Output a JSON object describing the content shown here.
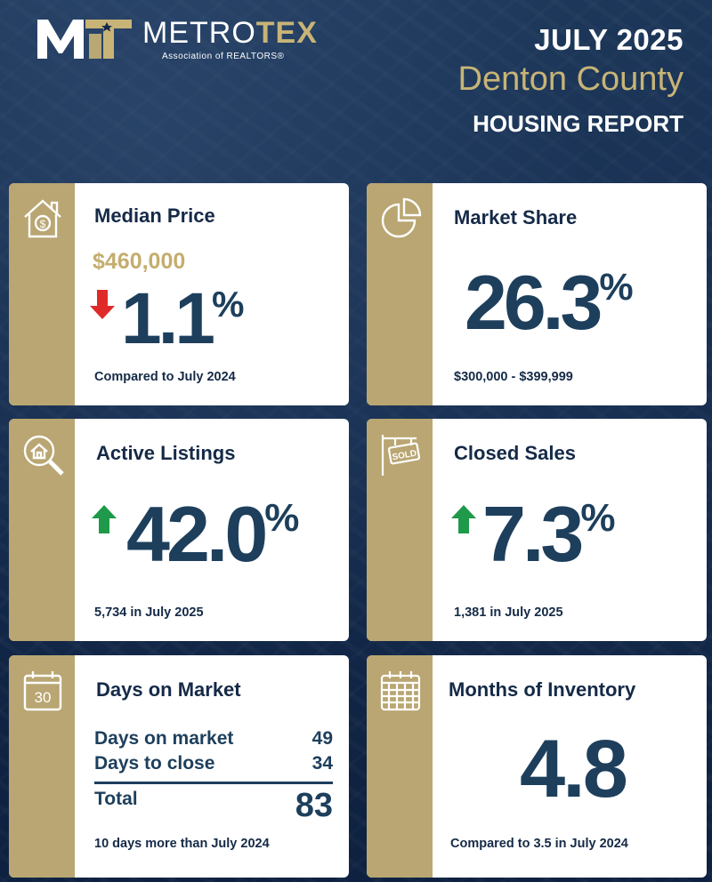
{
  "header": {
    "logo_metro": "METRO",
    "logo_tex": "TEX",
    "logo_sub": "Association of REALTORS®",
    "date": "JULY 2025",
    "county": "Denton County",
    "report": "HOUSING REPORT"
  },
  "colors": {
    "navy": "#152a47",
    "gold": "#b9a672",
    "up": "#1f9a4a",
    "down": "#e02a2a"
  },
  "cards": {
    "median_price": {
      "title": "Median Price",
      "price": "$460,000",
      "change": "1.1",
      "unit": "%",
      "direction": "down",
      "foot": "Compared to July 2024",
      "icon": "house-dollar-icon"
    },
    "market_share": {
      "title": "Market Share",
      "value": "26.3",
      "unit": "%",
      "foot": "$300,000 - $399,999",
      "icon": "pie-chart-icon"
    },
    "active_listings": {
      "title": "Active Listings",
      "change": "42.0",
      "unit": "%",
      "direction": "up",
      "foot": "5,734 in July 2025",
      "icon": "magnifier-house-icon"
    },
    "closed_sales": {
      "title": "Closed Sales",
      "change": "7.3",
      "unit": "%",
      "direction": "up",
      "foot": "1,381 in July 2025",
      "icon": "sold-sign-icon"
    },
    "days_on_market": {
      "title": "Days on Market",
      "rows": [
        {
          "label": "Days on market",
          "value": "49"
        },
        {
          "label": "Days to close",
          "value": "34"
        }
      ],
      "total_label": "Total",
      "total_value": "83",
      "foot": "10 days more than July 2024",
      "icon_text": "30",
      "icon": "calendar-30-icon"
    },
    "months_inventory": {
      "title": "Months of Inventory",
      "value": "4.8",
      "foot": "Compared to 3.5 in July 2024",
      "icon": "calendar-grid-icon"
    }
  }
}
